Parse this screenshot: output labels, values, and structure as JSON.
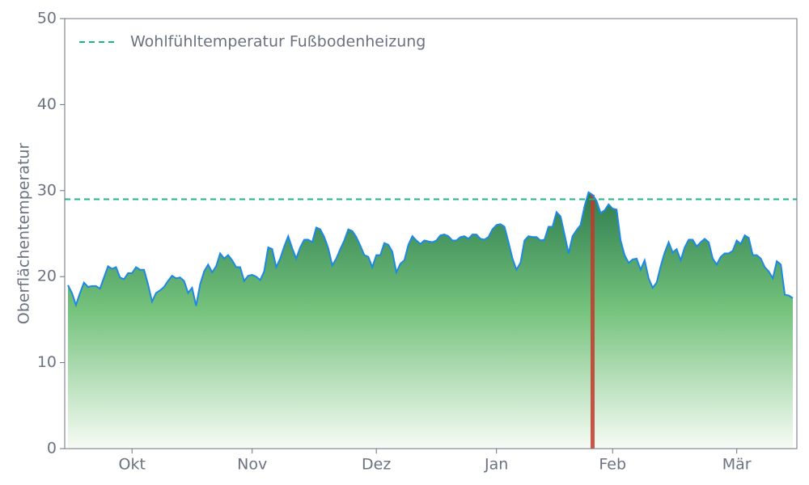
{
  "chart_data": {
    "type": "area",
    "ylabel": "Oberflächentemperatur",
    "categories": [
      null,
      null,
      null,
      null,
      null,
      null,
      null,
      null,
      null,
      null,
      null,
      null,
      null,
      null,
      null,
      null,
      "Okt",
      null,
      null,
      null,
      null,
      null,
      null,
      null,
      null,
      null,
      null,
      null,
      null,
      null,
      null,
      null,
      null,
      null,
      null,
      null,
      null,
      null,
      null,
      null,
      null,
      null,
      null,
      null,
      null,
      null,
      "Nov",
      null,
      null,
      null,
      null,
      null,
      null,
      null,
      null,
      null,
      null,
      null,
      null,
      null,
      null,
      null,
      null,
      null,
      null,
      null,
      null,
      null,
      null,
      null,
      null,
      null,
      null,
      null,
      null,
      null,
      null,
      "Dez",
      null,
      null,
      null,
      null,
      null,
      null,
      null,
      null,
      null,
      null,
      null,
      null,
      null,
      null,
      null,
      null,
      null,
      null,
      null,
      null,
      null,
      null,
      null,
      null,
      null,
      null,
      null,
      null,
      null,
      "Jan",
      null,
      null,
      null,
      null,
      null,
      null,
      null,
      null,
      null,
      null,
      null,
      null,
      null,
      null,
      null,
      null,
      null,
      null,
      null,
      null,
      null,
      null,
      null,
      null,
      null,
      null,
      null,
      null,
      "Feb",
      null,
      null,
      null,
      null,
      null,
      null,
      null,
      null,
      null,
      null,
      null,
      null,
      null,
      null,
      null,
      null,
      null,
      null,
      null,
      null,
      null,
      null,
      null,
      null,
      null,
      null,
      null,
      null,
      null,
      null,
      "Mär",
      null,
      null,
      null,
      null,
      null,
      null,
      null,
      null,
      null,
      null,
      null,
      null,
      null,
      null
    ],
    "values": [
      19.0,
      18.1,
      16.7,
      18.1,
      19.3,
      18.8,
      18.9,
      18.9,
      18.6,
      19.9,
      21.2,
      20.9,
      21.1,
      19.9,
      19.7,
      20.4,
      20.4,
      21.1,
      20.8,
      20.8,
      19.1,
      17.1,
      18.1,
      18.4,
      18.8,
      19.5,
      20.1,
      19.8,
      19.9,
      19.5,
      18.1,
      18.7,
      16.6,
      19.1,
      20.6,
      21.4,
      20.5,
      21.2,
      22.7,
      22.1,
      22.5,
      21.9,
      21.1,
      21.1,
      19.5,
      20.1,
      20.2,
      20.0,
      19.6,
      20.6,
      23.4,
      23.2,
      21.1,
      22.1,
      23.5,
      24.7,
      23.3,
      22.1,
      23.4,
      24.3,
      24.3,
      24.0,
      25.7,
      25.5,
      24.6,
      23.3,
      21.3,
      22.1,
      23.2,
      24.2,
      25.5,
      25.3,
      24.6,
      23.6,
      22.5,
      22.3,
      21.1,
      22.5,
      22.5,
      23.9,
      23.7,
      22.9,
      20.5,
      21.5,
      21.9,
      23.7,
      24.7,
      24.2,
      23.8,
      24.2,
      24.1,
      24.0,
      24.2,
      24.8,
      24.9,
      24.7,
      24.2,
      24.2,
      24.6,
      24.7,
      24.4,
      24.9,
      24.9,
      24.4,
      24.3,
      24.6,
      25.5,
      26.0,
      26.1,
      25.8,
      24.0,
      22.1,
      20.8,
      21.6,
      24.2,
      24.7,
      24.6,
      24.6,
      24.2,
      24.3,
      25.8,
      25.8,
      27.5,
      27.0,
      24.9,
      22.7,
      24.7,
      25.4,
      26.0,
      28.2,
      29.8,
      29.5,
      28.8,
      27.4,
      27.7,
      28.4,
      27.9,
      27.8,
      24.2,
      22.5,
      21.6,
      22.0,
      22.1,
      20.8,
      21.9,
      19.8,
      18.7,
      19.3,
      21.2,
      22.8,
      24.0,
      22.8,
      23.2,
      21.9,
      23.4,
      24.3,
      24.3,
      23.5,
      24.0,
      24.4,
      24.0,
      22.1,
      21.4,
      22.3,
      22.7,
      22.7,
      23.0,
      24.2,
      23.8,
      24.8,
      24.5,
      22.5,
      22.5,
      22.1,
      21.1,
      20.6,
      19.8,
      21.8,
      21.4,
      17.9,
      17.8,
      17.5
    ],
    "color": "#2e8b57",
    "line_color": "#1e88e5",
    "ylim": [
      0,
      50
    ],
    "yticks": [
      0,
      10,
      20,
      30,
      40,
      50
    ],
    "reference_line": {
      "label": "Wohlfühltemperatur Fußbodenheizung",
      "value": 29,
      "color": "#1db584"
    },
    "highlight": {
      "index": 131,
      "color": "#c0392b"
    },
    "legend": "upper left"
  }
}
